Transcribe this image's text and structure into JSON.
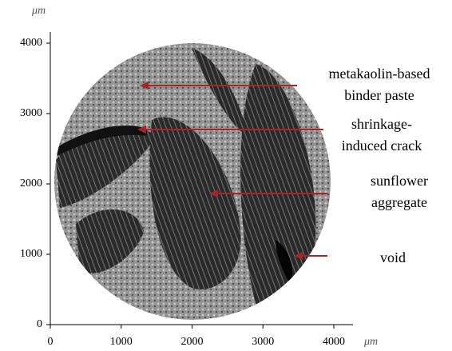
{
  "image": {
    "description_labels": [
      {
        "text": [
          "metakaolin-based",
          "binder paste"
        ]
      },
      {
        "text": [
          "shrinkage-",
          "induced crack"
        ]
      },
      {
        "text": [
          "sunflower",
          "aggregate"
        ]
      },
      {
        "text": [
          "void"
        ]
      }
    ]
  },
  "x_axis": {
    "unit": "μm",
    "lim": [
      0,
      4300
    ],
    "ticks": [
      0,
      1000,
      2000,
      3000,
      4000
    ]
  },
  "y_axis": {
    "unit": "μm",
    "lim": [
      0,
      4200
    ],
    "ticks": [
      0,
      1000,
      2000,
      3000,
      4000
    ]
  }
}
